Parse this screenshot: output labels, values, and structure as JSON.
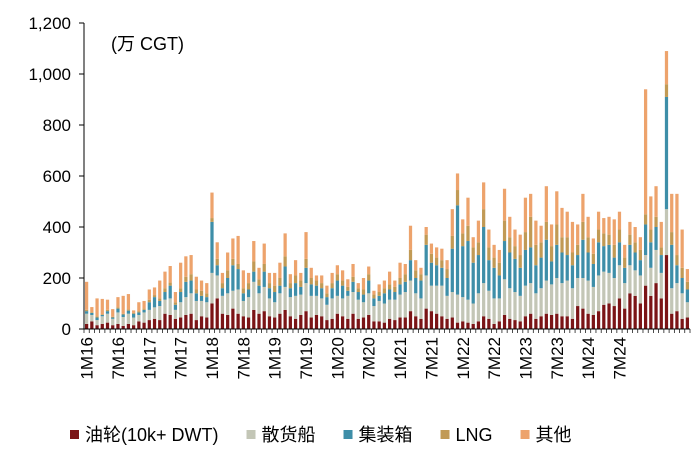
{
  "chart_data": {
    "type": "bar",
    "stacked": true,
    "unit_label": "(万 CGT)",
    "ylim": [
      0,
      1200
    ],
    "yticks": [
      0,
      200,
      400,
      600,
      800,
      1000,
      1200
    ],
    "ytick_labels": [
      "0",
      "200",
      "400",
      "600",
      "800",
      "1,000",
      "1,200"
    ],
    "month_start": "2016-01",
    "xtick_labels": [
      "1M16",
      "7M16",
      "1M17",
      "7M17",
      "1M18",
      "7M18",
      "1M19",
      "7M19",
      "1M20",
      "7M20",
      "1M21",
      "7M21",
      "1M22",
      "7M22",
      "1M23",
      "7M23",
      "1M24",
      "7M24"
    ],
    "colors": {
      "tanker": "#7b1416",
      "bulk": "#c3c6b6",
      "container": "#3e8ea8",
      "lng": "#c19a55",
      "other": "#eda36c",
      "axis": "#000000"
    },
    "legend_position": "bottom",
    "series": [
      {
        "name": "油轮(10k+ DWT)",
        "key": "tanker",
        "values": [
          20,
          30,
          15,
          20,
          25,
          15,
          20,
          12,
          20,
          15,
          30,
          25,
          35,
          40,
          35,
          60,
          55,
          40,
          45,
          55,
          60,
          35,
          50,
          45,
          100,
          120,
          60,
          55,
          80,
          60,
          50,
          45,
          75,
          60,
          70,
          50,
          45,
          60,
          75,
          50,
          40,
          55,
          70,
          45,
          55,
          50,
          35,
          40,
          60,
          50,
          40,
          60,
          40,
          45,
          55,
          30,
          30,
          25,
          40,
          35,
          45,
          45,
          70,
          50,
          40,
          80,
          70,
          60,
          50,
          40,
          45,
          25,
          30,
          25,
          20,
          30,
          50,
          40,
          20,
          30,
          55,
          40,
          35,
          30,
          50,
          60,
          40,
          50,
          60,
          55,
          60,
          50,
          50,
          40,
          90,
          80,
          60,
          55,
          70,
          95,
          100,
          90,
          120,
          80,
          140,
          130,
          100,
          170,
          130,
          180,
          120,
          290,
          60,
          70,
          40,
          45
        ]
      },
      {
        "name": "散货船",
        "key": "bulk",
        "values": [
          40,
          25,
          20,
          30,
          35,
          25,
          45,
          35,
          40,
          30,
          25,
          40,
          40,
          45,
          55,
          55,
          65,
          35,
          60,
          70,
          80,
          75,
          60,
          60,
          120,
          90,
          70,
          85,
          70,
          95,
          60,
          80,
          110,
          80,
          95,
          70,
          60,
          80,
          90,
          75,
          90,
          80,
          110,
          85,
          75,
          70,
          60,
          80,
          70,
          70,
          90,
          85,
          75,
          60,
          85,
          60,
          80,
          75,
          75,
          80,
          90,
          100,
          120,
          90,
          80,
          130,
          100,
          110,
          120,
          90,
          100,
          110,
          95,
          90,
          80,
          110,
          130,
          110,
          100,
          90,
          140,
          120,
          110,
          100,
          120,
          120,
          100,
          110,
          130,
          120,
          140,
          130,
          140,
          120,
          110,
          120,
          130,
          110,
          140,
          130,
          120,
          110,
          130,
          100,
          110,
          100,
          110,
          120,
          110,
          130,
          100,
          180,
          100,
          110,
          100,
          60
        ]
      },
      {
        "name": "集装箱",
        "key": "container",
        "values": [
          10,
          8,
          10,
          5,
          10,
          5,
          15,
          10,
          12,
          15,
          10,
          10,
          30,
          40,
          20,
          30,
          50,
          20,
          40,
          60,
          50,
          30,
          20,
          20,
          200,
          40,
          30,
          60,
          100,
          80,
          30,
          30,
          40,
          30,
          60,
          40,
          40,
          30,
          80,
          35,
          50,
          30,
          60,
          45,
          40,
          40,
          30,
          40,
          60,
          50,
          20,
          40,
          30,
          30,
          50,
          30,
          20,
          40,
          40,
          30,
          40,
          40,
          80,
          60,
          70,
          120,
          90,
          80,
          70,
          70,
          170,
          350,
          200,
          230,
          160,
          150,
          220,
          120,
          120,
          90,
          150,
          140,
          130,
          110,
          140,
          140,
          110,
          120,
          160,
          90,
          130,
          120,
          100,
          90,
          90,
          150,
          110,
          90,
          130,
          100,
          110,
          80,
          90,
          60,
          80,
          70,
          60,
          120,
          100,
          90,
          70,
          440,
          170,
          70,
          60,
          50
        ]
      },
      {
        "name": "LNG",
        "key": "lng",
        "values": [
          5,
          3,
          5,
          3,
          5,
          3,
          5,
          3,
          5,
          3,
          5,
          5,
          10,
          8,
          10,
          15,
          12,
          10,
          15,
          20,
          25,
          15,
          20,
          15,
          15,
          25,
          20,
          30,
          25,
          20,
          20,
          25,
          40,
          25,
          30,
          20,
          25,
          30,
          40,
          20,
          30,
          25,
          35,
          25,
          20,
          20,
          15,
          20,
          25,
          20,
          15,
          20,
          15,
          20,
          25,
          15,
          15,
          20,
          20,
          20,
          25,
          30,
          40,
          30,
          25,
          40,
          35,
          30,
          30,
          35,
          50,
          60,
          50,
          60,
          60,
          50,
          70,
          50,
          40,
          50,
          80,
          60,
          50,
          50,
          70,
          120,
          80,
          60,
          70,
          60,
          80,
          60,
          70,
          50,
          40,
          70,
          60,
          40,
          50,
          50,
          40,
          50,
          50,
          40,
          40,
          40,
          40,
          40,
          50,
          40,
          30,
          50,
          50,
          40,
          40,
          30
        ]
      },
      {
        "name": "其他",
        "key": "other",
        "values": [
          110,
          20,
          70,
          60,
          40,
          30,
          40,
          70,
          60,
          10,
          35,
          30,
          40,
          30,
          70,
          65,
          65,
          40,
          100,
          80,
          75,
          50,
          40,
          40,
          100,
          65,
          40,
          70,
          80,
          110,
          70,
          40,
          80,
          45,
          80,
          40,
          50,
          60,
          90,
          35,
          60,
          30,
          105,
          40,
          20,
          30,
          30,
          40,
          35,
          40,
          30,
          50,
          20,
          45,
          30,
          15,
          30,
          30,
          50,
          25,
          60,
          40,
          95,
          40,
          25,
          30,
          40,
          40,
          45,
          35,
          105,
          65,
          55,
          110,
          40,
          85,
          105,
          70,
          50,
          50,
          125,
          80,
          65,
          80,
          135,
          90,
          95,
          65,
          140,
          85,
          130,
          115,
          100,
          120,
          80,
          110,
          80,
          60,
          70,
          60,
          70,
          100,
          70,
          50,
          50,
          60,
          50,
          490,
          130,
          120,
          100,
          130,
          150,
          240,
          150,
          50
        ]
      }
    ]
  }
}
